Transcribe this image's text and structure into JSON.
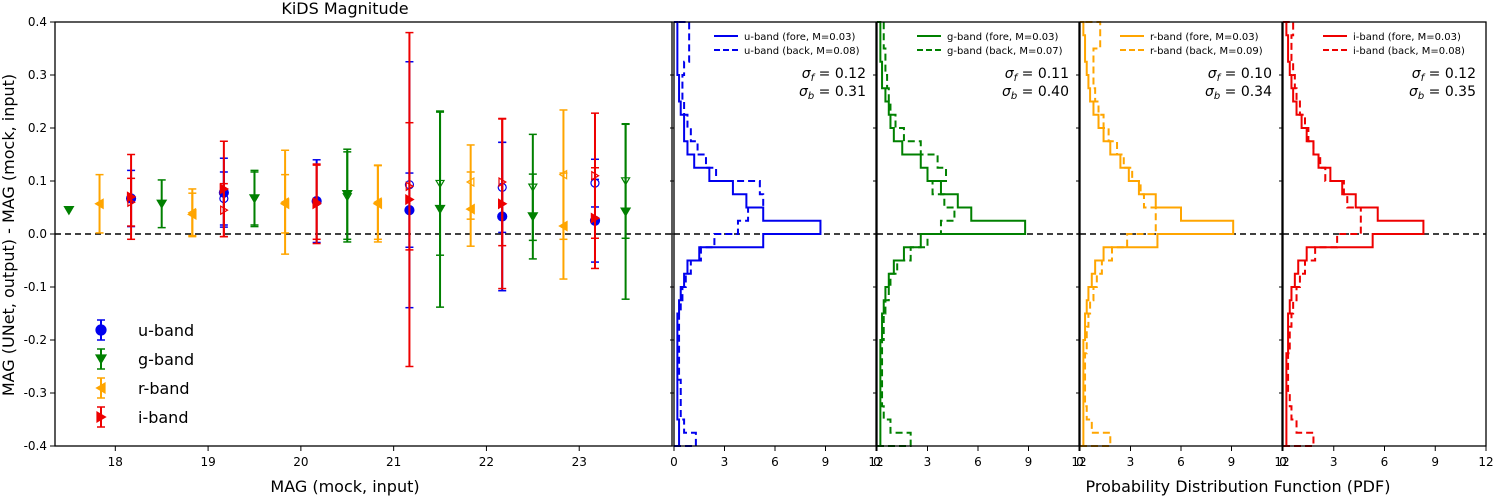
{
  "chart_data": [
    {
      "type": "scatter",
      "title": "KiDS Magnitude",
      "xlabel": "MAG (mock, input)",
      "ylabel": "MAG (UNet, output) - MAG (mock, input)",
      "xlim": [
        17.35,
        24.0
      ],
      "ylim": [
        -0.4,
        0.4
      ],
      "xticks": [
        "18",
        "19",
        "20",
        "21",
        "22",
        "23"
      ],
      "yticks": [
        "-0.4",
        "-0.3",
        "-0.2",
        "-0.1",
        "0.0",
        "0.1",
        "0.2",
        "0.3",
        "0.4"
      ],
      "zero_line": true,
      "legend": {
        "placement": "lower-left",
        "entries": [
          {
            "label": "u-band",
            "marker": "circle",
            "color": "#0000ee"
          },
          {
            "label": "g-band",
            "marker": "triangle-down",
            "color": "#008000"
          },
          {
            "label": "r-band",
            "marker": "triangle-left",
            "color": "#ffa500"
          },
          {
            "label": "i-band",
            "marker": "triangle-right",
            "color": "#ee0000"
          }
        ]
      },
      "series": [
        {
          "name": "u-band",
          "color": "#0000ee",
          "marker": "circle",
          "points": [
            {
              "x": 18.17,
              "y": 0.067,
              "err": 0.053,
              "filled": true
            },
            {
              "x": 19.17,
              "y": 0.078,
              "err": 0.065,
              "filled": true
            },
            {
              "x": 19.17,
              "y": 0.067,
              "err": 0.05,
              "filled": false
            },
            {
              "x": 20.17,
              "y": 0.062,
              "err": 0.078,
              "filled": true
            },
            {
              "x": 21.17,
              "y": 0.045,
              "err": 0.07,
              "filled": true
            },
            {
              "x": 21.17,
              "y": 0.093,
              "err": 0.232,
              "filled": false
            },
            {
              "x": 22.17,
              "y": 0.033,
              "err": 0.14,
              "filled": true
            },
            {
              "x": 22.17,
              "y": 0.088,
              "err": 0.085,
              "filled": false
            },
            {
              "x": 23.17,
              "y": 0.025,
              "err": 0.078,
              "filled": true
            },
            {
              "x": 23.17,
              "y": 0.096,
              "err": 0.045,
              "filled": false
            }
          ]
        },
        {
          "name": "g-band",
          "color": "#008000",
          "marker": "triangle-down",
          "points": [
            {
              "x": 17.5,
              "y": 0.045,
              "err": 0.0,
              "filled": true
            },
            {
              "x": 18.5,
              "y": 0.057,
              "err": 0.045,
              "filled": true
            },
            {
              "x": 19.5,
              "y": 0.067,
              "err": 0.053,
              "filled": true
            },
            {
              "x": 19.5,
              "y": 0.067,
              "err": 0.05,
              "filled": false
            },
            {
              "x": 20.5,
              "y": 0.075,
              "err": 0.085,
              "filled": true
            },
            {
              "x": 20.5,
              "y": 0.07,
              "err": 0.085,
              "filled": false
            },
            {
              "x": 21.5,
              "y": 0.047,
              "err": 0.185,
              "filled": true
            },
            {
              "x": 21.5,
              "y": 0.095,
              "err": 0.135,
              "filled": false
            },
            {
              "x": 22.5,
              "y": 0.033,
              "err": 0.08,
              "filled": true
            },
            {
              "x": 22.5,
              "y": 0.088,
              "err": 0.1,
              "filled": false
            },
            {
              "x": 23.5,
              "y": 0.042,
              "err": 0.165,
              "filled": true
            },
            {
              "x": 23.5,
              "y": 0.1,
              "err": 0.108,
              "filled": false
            }
          ]
        },
        {
          "name": "r-band",
          "color": "#ffa500",
          "marker": "triangle-left",
          "points": [
            {
              "x": 17.83,
              "y": 0.057,
              "err": 0.055,
              "filled": true
            },
            {
              "x": 18.83,
              "y": 0.037,
              "err": 0.04,
              "filled": true
            },
            {
              "x": 18.83,
              "y": 0.04,
              "err": 0.045,
              "filled": false
            },
            {
              "x": 19.83,
              "y": 0.057,
              "err": 0.055,
              "filled": true
            },
            {
              "x": 19.83,
              "y": 0.06,
              "err": 0.098,
              "filled": false
            },
            {
              "x": 20.83,
              "y": 0.057,
              "err": 0.072,
              "filled": true
            },
            {
              "x": 20.83,
              "y": 0.06,
              "err": 0.07,
              "filled": false
            },
            {
              "x": 21.83,
              "y": 0.047,
              "err": 0.07,
              "filled": true
            },
            {
              "x": 21.83,
              "y": 0.098,
              "err": 0.07,
              "filled": false
            },
            {
              "x": 22.83,
              "y": 0.015,
              "err": 0.1,
              "filled": true
            },
            {
              "x": 22.83,
              "y": 0.112,
              "err": 0.122,
              "filled": false
            }
          ]
        },
        {
          "name": "i-band",
          "color": "#ee0000",
          "marker": "triangle-right",
          "points": [
            {
              "x": 18.17,
              "y": 0.07,
              "err": 0.08,
              "filled": true
            },
            {
              "x": 18.17,
              "y": 0.06,
              "err": 0.045,
              "filled": false
            },
            {
              "x": 19.17,
              "y": 0.085,
              "err": 0.09,
              "filled": true
            },
            {
              "x": 19.17,
              "y": 0.045,
              "err": 0.05,
              "filled": false
            },
            {
              "x": 20.17,
              "y": 0.057,
              "err": 0.075,
              "filled": true
            },
            {
              "x": 20.17,
              "y": 0.06,
              "err": 0.07,
              "filled": false
            },
            {
              "x": 21.17,
              "y": 0.065,
              "err": 0.315,
              "filled": true
            },
            {
              "x": 21.17,
              "y": 0.09,
              "err": 0.12,
              "filled": false
            },
            {
              "x": 22.17,
              "y": 0.057,
              "err": 0.16,
              "filled": true
            },
            {
              "x": 22.17,
              "y": 0.098,
              "err": 0.12,
              "filled": false
            },
            {
              "x": 23.17,
              "y": 0.03,
              "err": 0.095,
              "filled": true
            },
            {
              "x": 23.17,
              "y": 0.11,
              "err": 0.118,
              "filled": false
            }
          ]
        }
      ]
    },
    {
      "type": "histogram",
      "orientation": "horizontal",
      "xlabel": "Probability Distribution Function (PDF)",
      "xticks": [
        "0",
        "3",
        "6",
        "9",
        "12"
      ],
      "xlim": [
        0,
        12
      ],
      "ylim": [
        -0.4,
        0.4
      ],
      "bin_edges": [
        -0.4,
        -0.375,
        -0.35,
        -0.325,
        -0.3,
        -0.275,
        -0.25,
        -0.225,
        -0.2,
        -0.175,
        -0.15,
        -0.125,
        -0.1,
        -0.075,
        -0.05,
        -0.025,
        0.0,
        0.025,
        0.05,
        0.075,
        0.1,
        0.125,
        0.15,
        0.175,
        0.2,
        0.225,
        0.25,
        0.275,
        0.3,
        0.325,
        0.35,
        0.375,
        0.4
      ],
      "panels": [
        {
          "band": "u-band",
          "color": "#0000ee",
          "legend": [
            "u-band (fore, M=0.03)",
            "u-band (back, M=0.08)"
          ],
          "sigma_f": "= 0.12",
          "sigma_b": "= 0.31",
          "fore": [
            0.3,
            0.3,
            0.2,
            0.2,
            0.2,
            0.2,
            0.2,
            0.2,
            0.2,
            0.2,
            0.3,
            0.4,
            0.6,
            0.8,
            1.5,
            5.3,
            8.7,
            5.3,
            4.3,
            3.5,
            2.1,
            1.2,
            0.8,
            0.6,
            0.6,
            0.4,
            0.3,
            0.3,
            0.2,
            0.2,
            0.2,
            0.2
          ],
          "back": [
            1.3,
            0.6,
            0.4,
            0.4,
            0.4,
            0.3,
            0.3,
            0.3,
            0.3,
            0.3,
            0.4,
            0.5,
            0.7,
            1.0,
            1.6,
            2.4,
            3.8,
            4.4,
            5.3,
            5.1,
            2.5,
            1.9,
            1.4,
            1.0,
            0.8,
            0.6,
            0.5,
            0.5,
            0.6,
            0.9,
            0.9,
            0.9
          ]
        },
        {
          "band": "g-band",
          "color": "#008000",
          "legend": [
            "g-band (fore, M=0.03)",
            "g-band (back, M=0.07)"
          ],
          "sigma_f": "= 0.11",
          "sigma_b": "= 0.40",
          "fore": [
            0.2,
            0.2,
            0.2,
            0.2,
            0.2,
            0.2,
            0.2,
            0.2,
            0.3,
            0.3,
            0.4,
            0.5,
            0.7,
            1.0,
            1.6,
            2.6,
            8.8,
            5.6,
            4.8,
            3.8,
            3.0,
            2.6,
            1.5,
            1.0,
            0.8,
            0.7,
            0.5,
            0.3,
            0.3,
            0.2,
            0.2,
            0.2
          ],
          "back": [
            2.0,
            0.8,
            0.4,
            0.3,
            0.3,
            0.3,
            0.3,
            0.3,
            0.4,
            0.4,
            0.5,
            0.7,
            0.8,
            1.2,
            2.0,
            3.0,
            3.8,
            4.6,
            4.0,
            3.3,
            4.1,
            3.6,
            2.6,
            1.6,
            1.1,
            0.8,
            0.7,
            0.6,
            0.5,
            0.5,
            0.4,
            0.4
          ]
        },
        {
          "band": "r-band",
          "color": "#ffa500",
          "legend": [
            "r-band (fore, M=0.03)",
            "r-band (back, M=0.09)"
          ],
          "sigma_f": "= 0.10",
          "sigma_b": "= 0.34",
          "fore": [
            0.2,
            0.2,
            0.2,
            0.2,
            0.2,
            0.2,
            0.2,
            0.2,
            0.3,
            0.3,
            0.4,
            0.5,
            0.7,
            0.9,
            1.4,
            4.6,
            9.1,
            6.0,
            4.5,
            3.5,
            2.9,
            2.4,
            1.8,
            1.4,
            1.1,
            0.8,
            0.6,
            0.5,
            0.4,
            0.3,
            0.3,
            0.2
          ],
          "back": [
            1.8,
            0.7,
            0.4,
            0.3,
            0.3,
            0.3,
            0.3,
            0.4,
            0.4,
            0.5,
            0.6,
            0.8,
            1.0,
            1.3,
            1.9,
            2.8,
            4.5,
            4.5,
            3.8,
            3.6,
            3.1,
            2.6,
            2.2,
            1.7,
            1.4,
            1.1,
            0.9,
            0.8,
            0.8,
            0.8,
            1.2,
            1.2
          ]
        },
        {
          "band": "i-band",
          "color": "#ee0000",
          "legend": [
            "i-band (fore, M=0.03)",
            "i-band (back, M=0.08)"
          ],
          "sigma_f": "= 0.12",
          "sigma_b": "= 0.35",
          "fore": [
            0.2,
            0.2,
            0.2,
            0.2,
            0.2,
            0.2,
            0.2,
            0.3,
            0.3,
            0.3,
            0.4,
            0.5,
            0.7,
            0.9,
            1.4,
            5.3,
            8.3,
            5.6,
            4.3,
            3.5,
            2.8,
            2.1,
            1.8,
            1.4,
            1.1,
            0.8,
            0.6,
            0.5,
            0.4,
            0.3,
            0.3,
            0.2
          ],
          "back": [
            1.8,
            0.8,
            0.5,
            0.4,
            0.3,
            0.3,
            0.3,
            0.4,
            0.4,
            0.5,
            0.6,
            0.8,
            1.0,
            1.3,
            1.9,
            3.2,
            4.6,
            4.6,
            3.8,
            3.6,
            2.5,
            2.2,
            1.8,
            1.5,
            1.3,
            1.0,
            0.8,
            0.7,
            0.6,
            0.5,
            0.5,
            0.6
          ]
        }
      ]
    }
  ]
}
